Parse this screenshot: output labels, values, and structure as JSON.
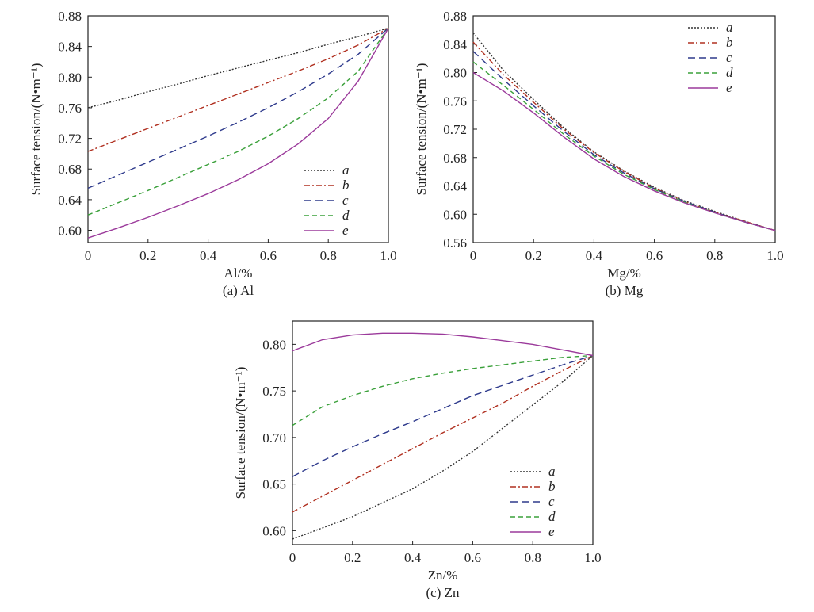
{
  "chart_data": [
    {
      "type": "line",
      "panel": "a",
      "caption": "(a) Al",
      "xlabel": "Al/%",
      "ylabel": "Surface tension/(N•m⁻¹)",
      "xlim": [
        0,
        1.0
      ],
      "ylim": [
        0.584,
        0.88
      ],
      "xticks": [
        0,
        0.2,
        0.4,
        0.6,
        0.8,
        1.0
      ],
      "xtick_labels": [
        "0",
        "0.2",
        "0.4",
        "0.6",
        "0.8",
        "1.0"
      ],
      "yticks": [
        0.6,
        0.64,
        0.68,
        0.72,
        0.76,
        0.8,
        0.84,
        0.88
      ],
      "ytick_labels": [
        "0.60",
        "0.64",
        "0.68",
        "0.72",
        "0.76",
        "0.80",
        "0.84",
        "0.88"
      ],
      "legend": "bottom-right",
      "x": [
        0,
        0.1,
        0.2,
        0.3,
        0.4,
        0.5,
        0.6,
        0.7,
        0.8,
        0.9,
        1.0
      ],
      "series": [
        {
          "name": "a",
          "color": "#333333",
          "dash": "2,2",
          "values": [
            0.76,
            0.77,
            0.781,
            0.791,
            0.802,
            0.812,
            0.822,
            0.832,
            0.843,
            0.853,
            0.864
          ]
        },
        {
          "name": "b",
          "color": "#b03020",
          "dash": "7,3,2,3",
          "values": [
            0.703,
            0.718,
            0.733,
            0.748,
            0.763,
            0.778,
            0.793,
            0.808,
            0.824,
            0.842,
            0.864
          ]
        },
        {
          "name": "c",
          "color": "#2e3a8c",
          "dash": "9,5",
          "values": [
            0.655,
            0.672,
            0.689,
            0.706,
            0.723,
            0.741,
            0.76,
            0.781,
            0.804,
            0.83,
            0.864
          ]
        },
        {
          "name": "d",
          "color": "#3aa03a",
          "dash": "6,4",
          "values": [
            0.62,
            0.636,
            0.652,
            0.669,
            0.686,
            0.703,
            0.723,
            0.746,
            0.773,
            0.808,
            0.864
          ]
        },
        {
          "name": "e",
          "color": "#9b3a9b",
          "dash": "",
          "values": [
            0.59,
            0.603,
            0.617,
            0.632,
            0.648,
            0.666,
            0.687,
            0.713,
            0.746,
            0.795,
            0.864
          ]
        }
      ]
    },
    {
      "type": "line",
      "panel": "b",
      "caption": "(b) Mg",
      "xlabel": "Mg/%",
      "ylabel": "Surface tension/(N•m⁻¹)",
      "xlim": [
        0,
        1.0
      ],
      "ylim": [
        0.56,
        0.88
      ],
      "xticks": [
        0,
        0.2,
        0.4,
        0.6,
        0.8,
        1.0
      ],
      "xtick_labels": [
        "0",
        "0.2",
        "0.4",
        "0.6",
        "0.8",
        "1.0"
      ],
      "yticks": [
        0.56,
        0.6,
        0.64,
        0.68,
        0.72,
        0.76,
        0.8,
        0.84,
        0.88
      ],
      "ytick_labels": [
        "0.56",
        "0.60",
        "0.64",
        "0.68",
        "0.72",
        "0.76",
        "0.80",
        "0.84",
        "0.88"
      ],
      "legend": "top-right",
      "x": [
        0,
        0.1,
        0.2,
        0.3,
        0.4,
        0.5,
        0.6,
        0.7,
        0.8,
        0.9,
        1.0
      ],
      "series": [
        {
          "name": "a",
          "color": "#333333",
          "dash": "2,2",
          "values": [
            0.856,
            0.803,
            0.762,
            0.722,
            0.688,
            0.661,
            0.638,
            0.619,
            0.604,
            0.59,
            0.577
          ]
        },
        {
          "name": "b",
          "color": "#b03020",
          "dash": "7,3,2,3",
          "values": [
            0.843,
            0.797,
            0.758,
            0.72,
            0.687,
            0.66,
            0.637,
            0.618,
            0.603,
            0.59,
            0.577
          ]
        },
        {
          "name": "c",
          "color": "#2e3a8c",
          "dash": "9,5",
          "values": [
            0.83,
            0.79,
            0.753,
            0.717,
            0.684,
            0.658,
            0.636,
            0.618,
            0.603,
            0.589,
            0.577
          ]
        },
        {
          "name": "d",
          "color": "#3aa03a",
          "dash": "6,4",
          "values": [
            0.815,
            0.782,
            0.748,
            0.713,
            0.682,
            0.656,
            0.635,
            0.617,
            0.602,
            0.589,
            0.577
          ]
        },
        {
          "name": "e",
          "color": "#9b3a9b",
          "dash": "",
          "values": [
            0.8,
            0.774,
            0.743,
            0.709,
            0.678,
            0.653,
            0.633,
            0.616,
            0.602,
            0.589,
            0.577
          ]
        }
      ]
    },
    {
      "type": "line",
      "panel": "c",
      "caption": "(c) Zn",
      "xlabel": "Zn/%",
      "ylabel": "Surface tension/(N•m⁻¹)",
      "xlim": [
        0,
        1.0
      ],
      "ylim": [
        0.585,
        0.825
      ],
      "xticks": [
        0,
        0.2,
        0.4,
        0.6,
        0.8,
        1.0
      ],
      "xtick_labels": [
        "0",
        "0.2",
        "0.4",
        "0.6",
        "0.8",
        "1.0"
      ],
      "yticks": [
        0.6,
        0.65,
        0.7,
        0.75,
        0.8
      ],
      "ytick_labels": [
        "0.60",
        "0.65",
        "0.70",
        "0.75",
        "0.80"
      ],
      "legend": "bottom-right",
      "x": [
        0,
        0.1,
        0.2,
        0.3,
        0.4,
        0.5,
        0.6,
        0.7,
        0.8,
        0.9,
        1.0
      ],
      "series": [
        {
          "name": "a",
          "color": "#333333",
          "dash": "2,2",
          "values": [
            0.591,
            0.603,
            0.615,
            0.63,
            0.645,
            0.664,
            0.685,
            0.71,
            0.735,
            0.76,
            0.788
          ]
        },
        {
          "name": "b",
          "color": "#b03020",
          "dash": "7,3,2,3",
          "values": [
            0.62,
            0.637,
            0.654,
            0.671,
            0.688,
            0.705,
            0.721,
            0.737,
            0.755,
            0.772,
            0.788
          ]
        },
        {
          "name": "c",
          "color": "#2e3a8c",
          "dash": "9,5",
          "values": [
            0.658,
            0.675,
            0.69,
            0.704,
            0.717,
            0.731,
            0.745,
            0.756,
            0.767,
            0.778,
            0.788
          ]
        },
        {
          "name": "d",
          "color": "#3aa03a",
          "dash": "6,4",
          "values": [
            0.713,
            0.733,
            0.745,
            0.755,
            0.763,
            0.769,
            0.774,
            0.778,
            0.782,
            0.786,
            0.788
          ]
        },
        {
          "name": "e",
          "color": "#9b3a9b",
          "dash": "",
          "values": [
            0.793,
            0.805,
            0.81,
            0.812,
            0.812,
            0.811,
            0.808,
            0.804,
            0.8,
            0.794,
            0.788
          ]
        }
      ]
    }
  ]
}
